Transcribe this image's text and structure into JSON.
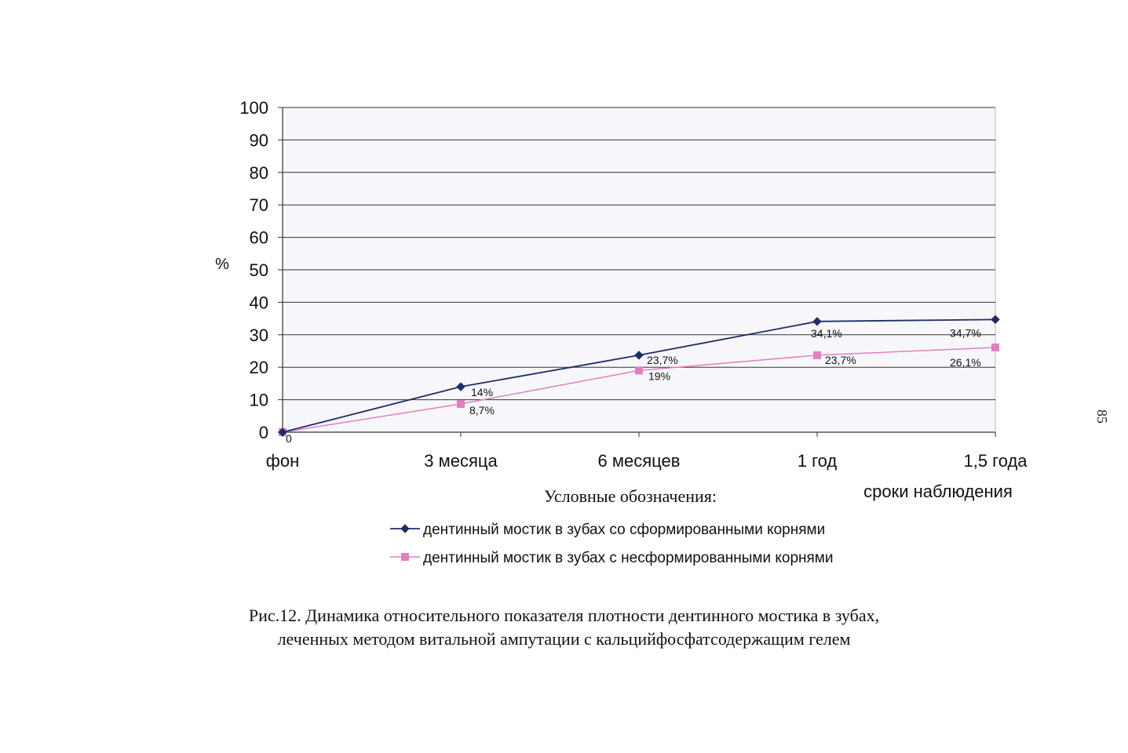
{
  "chart_data": {
    "type": "line",
    "ylabel": "%",
    "xlabel": "сроки наблюдения",
    "ylim": [
      0,
      100
    ],
    "yticks": [
      0,
      10,
      20,
      30,
      40,
      50,
      60,
      70,
      80,
      90,
      100
    ],
    "grid": true,
    "categories": [
      "фон",
      "3 месяца",
      "6 месяцев",
      "1 год",
      "1,5 года"
    ],
    "series": [
      {
        "name": "дентинный мостик в зубах со сформированными корнями",
        "color": "#1f2d6b",
        "marker": "diamond",
        "values": [
          0,
          14,
          23.7,
          34.1,
          34.7
        ],
        "labels": [
          "0",
          "14%",
          "23,7%",
          "34,1%",
          "34,7%"
        ]
      },
      {
        "name": "дентинный мостик в зубах с несформированными корнями",
        "color": "#e07fc0",
        "marker": "square",
        "values": [
          0,
          8.7,
          19,
          23.7,
          26.1
        ],
        "labels": [
          "",
          "8,7%",
          "19%",
          "23,7%",
          "26,1%"
        ]
      }
    ],
    "legend_title": "Условные обозначения:",
    "legend_position": "bottom"
  },
  "caption": {
    "line1": "Рис.12.  Динамика относительного показателя плотности дентинного мостика в зубах,",
    "line2": "леченных методом витальной ампутации с кальцийфосфатсодержащим гелем"
  },
  "page_number": "85"
}
